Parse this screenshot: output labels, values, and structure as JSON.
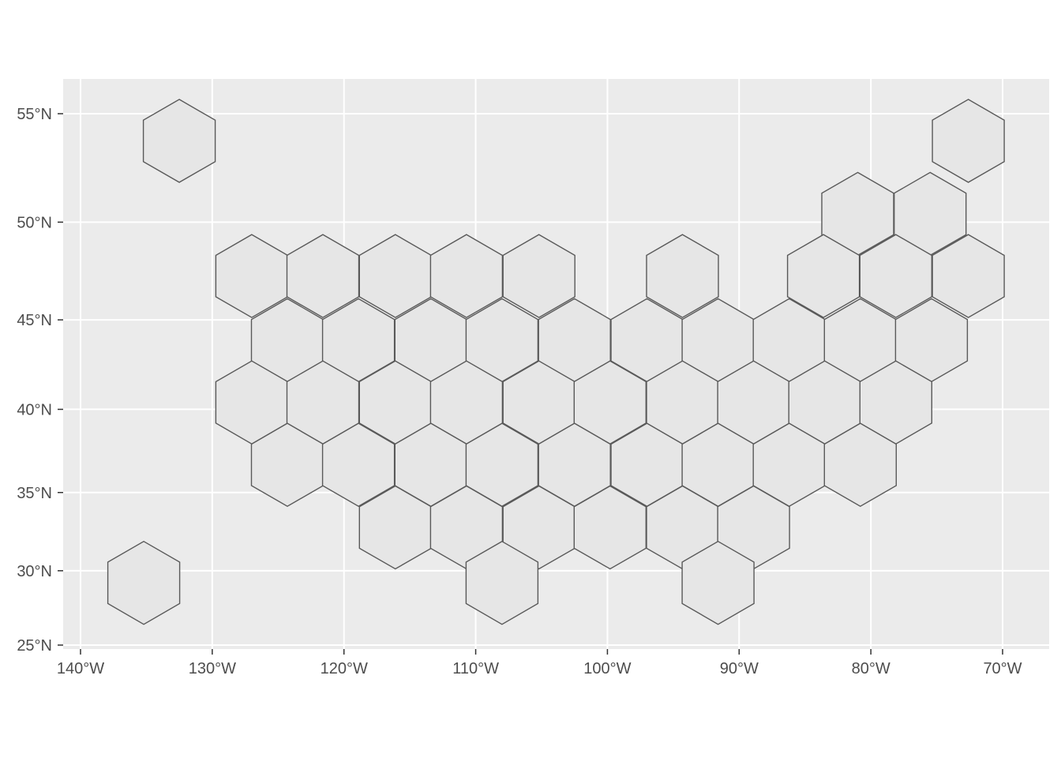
{
  "map": {
    "axes": {
      "x_ticks": [
        {
          "value": -140,
          "label": "140°W"
        },
        {
          "value": -130,
          "label": "130°W"
        },
        {
          "value": -120,
          "label": "120°W"
        },
        {
          "value": -110,
          "label": "110°W"
        },
        {
          "value": -100,
          "label": "100°W"
        },
        {
          "value": -90,
          "label": "90°W"
        },
        {
          "value": -80,
          "label": "80°W"
        },
        {
          "value": -70,
          "label": "70°W"
        }
      ],
      "y_ticks": [
        {
          "value": 25,
          "label": "25°N"
        },
        {
          "value": 30,
          "label": "30°N"
        },
        {
          "value": 35,
          "label": "35°N"
        },
        {
          "value": 40,
          "label": "40°N"
        },
        {
          "value": 45,
          "label": "45°N"
        },
        {
          "value": 50,
          "label": "50°N"
        },
        {
          "value": 55,
          "label": "55°N"
        }
      ]
    },
    "colors": {
      "panel": "#ebebeb",
      "grid": "#ffffff",
      "hex_fill": "#e6e6e6",
      "hex_stroke": "#595959",
      "tick_text": "#4d4d4d"
    },
    "hex_rows": [
      {
        "lat": 53.8,
        "lons": [
          -132.5,
          -72.6
        ]
      },
      {
        "lat": 50.4,
        "lons": [
          -81.0,
          -75.5
        ]
      },
      {
        "lat": 47.3,
        "lons": [
          -127.0,
          -121.6,
          -116.1,
          -110.7,
          -105.2,
          -94.3,
          -83.6,
          -78.1,
          -72.6
        ]
      },
      {
        "lat": 43.9,
        "lons": [
          -124.3,
          -118.9,
          -113.4,
          -108.0,
          -102.5,
          -97.0,
          -91.6,
          -86.2,
          -80.8,
          -75.4
        ]
      },
      {
        "lat": 40.4,
        "lons": [
          -127.0,
          -121.6,
          -116.1,
          -110.7,
          -105.2,
          -99.8,
          -94.3,
          -88.9,
          -83.5,
          -78.1
        ]
      },
      {
        "lat": 36.7,
        "lons": [
          -124.3,
          -118.9,
          -113.4,
          -108.0,
          -102.5,
          -97.0,
          -91.6,
          -86.2,
          -80.8
        ]
      },
      {
        "lat": 32.8,
        "lons": [
          -116.1,
          -110.7,
          -105.2,
          -99.8,
          -94.3,
          -88.9
        ]
      },
      {
        "lat": 29.2,
        "lons": [
          -135.2,
          -108.0,
          -91.6
        ]
      }
    ]
  }
}
